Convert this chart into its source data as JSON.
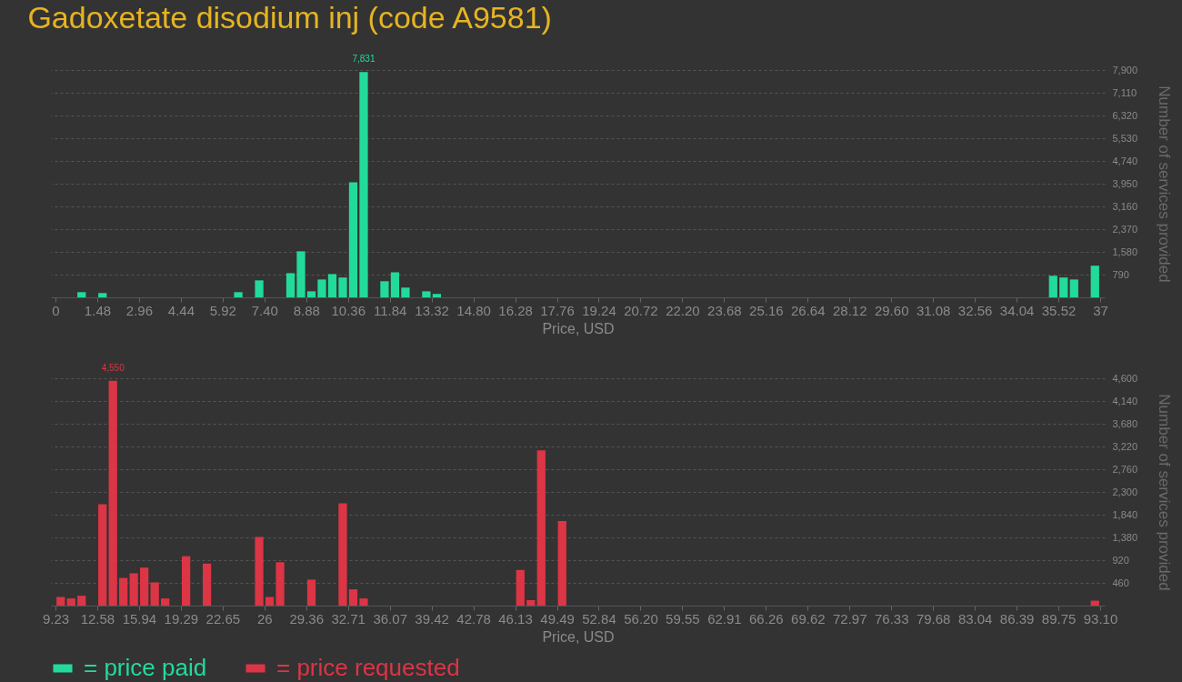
{
  "chart_data": [
    {
      "type": "histogram",
      "title": "Gadoxetate disodium inj (code A9581)",
      "xlabel": "Price, USD",
      "ylabel": "Number of services provided",
      "bins": [
        0,
        0.37,
        0.74,
        1.11,
        1.48,
        1.85,
        2.22,
        2.59,
        2.96,
        3.33,
        3.7,
        4.07,
        4.44,
        4.81,
        5.18,
        5.55,
        5.92,
        6.29,
        6.66,
        7.03,
        7.4,
        7.77,
        8.14,
        8.51,
        8.88,
        9.25,
        9.62,
        9.99,
        10.36,
        10.73,
        11.1,
        11.47,
        11.84,
        12.21,
        12.58,
        12.95,
        13.32,
        13.69,
        14.06,
        14.43,
        14.8,
        15.17,
        15.54,
        15.91,
        16.28,
        16.65,
        17.02,
        17.39,
        17.76,
        18.13,
        18.5,
        18.87,
        19.24,
        19.61,
        19.98,
        20.35,
        20.72,
        21.09,
        21.46,
        21.83,
        22.2,
        22.57,
        22.94,
        23.31,
        23.68,
        24.05,
        24.42,
        24.79,
        25.16,
        25.53,
        25.9,
        26.27,
        26.64,
        27.01,
        27.38,
        27.75,
        28.12,
        28.49,
        28.86,
        29.23,
        29.6,
        29.97,
        30.34,
        30.71,
        31.08,
        31.45,
        31.82,
        32.19,
        32.56,
        32.93,
        33.3,
        33.67,
        34.04,
        34.41,
        34.78,
        35.15,
        35.52,
        35.89,
        36.26,
        36.63,
        37
      ],
      "series": [
        {
          "name": "= price paid",
          "color": "#22db9a",
          "values": [
            0,
            0,
            180,
            0,
            150,
            0,
            0,
            0,
            0,
            0,
            0,
            0,
            0,
            0,
            0,
            0,
            0,
            180,
            0,
            590,
            0,
            0,
            840,
            1600,
            210,
            620,
            810,
            690,
            4000,
            7831,
            0,
            560,
            870,
            340,
            0,
            210,
            120,
            0,
            0,
            0,
            0,
            0,
            0,
            0,
            0,
            0,
            0,
            0,
            0,
            0,
            0,
            0,
            0,
            0,
            0,
            0,
            0,
            0,
            0,
            0,
            0,
            0,
            0,
            0,
            0,
            0,
            0,
            0,
            0,
            0,
            0,
            0,
            0,
            0,
            0,
            0,
            0,
            0,
            0,
            0,
            0,
            0,
            0,
            0,
            0,
            0,
            0,
            0,
            0,
            0,
            0,
            0,
            0,
            0,
            0,
            750,
            690,
            620,
            0,
            1100
          ],
          "value_labels": [
            null,
            null,
            null,
            null,
            null,
            null,
            null,
            null,
            null,
            null,
            null,
            null,
            null,
            null,
            null,
            null,
            null,
            null,
            null,
            null,
            null,
            null,
            null,
            null,
            null,
            null,
            null,
            null,
            null,
            "7,831",
            null,
            null,
            null,
            null,
            null,
            null,
            null,
            null,
            null,
            null,
            null,
            null,
            null,
            null,
            null,
            null,
            null,
            null,
            null,
            null,
            null,
            null,
            null,
            null,
            null,
            null,
            null,
            null,
            null,
            null,
            null,
            null,
            null,
            null,
            null,
            null,
            null,
            null,
            null,
            null,
            null,
            null,
            null,
            null,
            null,
            null,
            null,
            null,
            null,
            null,
            null,
            null,
            null,
            null,
            null,
            null,
            null,
            null,
            null,
            null,
            null,
            null,
            null,
            null,
            null,
            null,
            null,
            null,
            null,
            null
          ]
        }
      ],
      "xlim": [
        0,
        37
      ],
      "xticks": [
        0,
        1.48,
        2.96,
        4.44,
        5.92,
        {
          "value": 7.4,
          "label": "7.40"
        },
        8.88,
        10.36,
        11.84,
        13.32,
        {
          "value": 14.8,
          "label": "14.80"
        },
        16.28,
        17.76,
        19.24,
        20.72,
        {
          "value": 22.2,
          "label": "22.20"
        },
        23.68,
        25.16,
        26.64,
        28.12,
        {
          "value": 29.6,
          "label": "29.60"
        },
        31.08,
        32.56,
        34.04,
        35.52,
        37
      ],
      "ylim": [
        0,
        7900
      ],
      "yticks": [
        790,
        {
          "value": 1580,
          "label": "1,580"
        },
        {
          "value": 2370,
          "label": "2,370"
        },
        {
          "value": 3160,
          "label": "3,160"
        },
        {
          "value": 3950,
          "label": "3,950"
        },
        {
          "value": 4740,
          "label": "4,740"
        },
        {
          "value": 5530,
          "label": "5,530"
        },
        {
          "value": 6320,
          "label": "6,320"
        },
        {
          "value": 7110,
          "label": "7,110"
        },
        {
          "value": 7900,
          "label": "7,900"
        }
      ],
      "grid": "y",
      "legend": "bottom"
    },
    {
      "type": "histogram",
      "xlabel": "Price, USD",
      "ylabel": "Number of services provided",
      "bins": [
        9.23,
        10.0687,
        10.9074,
        11.7461,
        12.5848,
        13.4235,
        14.2622,
        15.1009,
        15.9396,
        16.7783,
        17.617,
        18.4557,
        19.2944,
        20.1331,
        20.9718,
        21.8105,
        22.6492,
        23.4879,
        24.3266,
        25.1653,
        26.004,
        26.8427,
        27.6814,
        28.5201,
        29.3588,
        30.1975,
        31.0362,
        31.8749,
        32.7136,
        33.5523,
        34.391,
        35.2297,
        36.0684,
        36.9071,
        37.7458,
        38.5845,
        39.4232,
        40.2619,
        41.1006,
        41.9393,
        42.778,
        43.6167,
        44.4554,
        45.2941,
        46.1328,
        46.9715,
        47.8102,
        48.6489,
        49.4876,
        50.3263,
        51.165,
        52.0037,
        52.8424,
        53.6811,
        54.5198,
        55.3585,
        56.1972,
        57.0359,
        57.8746,
        58.7133,
        59.552,
        60.3907,
        61.2294,
        62.0681,
        62.9068,
        63.7455,
        64.5842,
        65.4229,
        66.2616,
        67.1003,
        67.939,
        68.7777,
        69.6164,
        70.4551,
        71.2938,
        72.1325,
        72.9712,
        73.8099,
        74.6486,
        75.4873,
        76.326,
        77.1647,
        78.0034,
        78.8421,
        79.6808,
        80.5195,
        81.3582,
        82.1969,
        83.0356,
        83.8743,
        84.713,
        85.5517,
        86.3904,
        87.2291,
        88.0678,
        88.9065,
        89.7452,
        90.5839,
        91.4226,
        92.2613,
        93.1
      ],
      "series": [
        {
          "name": "= price requested",
          "color": "#dc3545",
          "values": [
            175,
            145,
            200,
            0,
            2050,
            4550,
            560,
            655,
            770,
            470,
            145,
            0,
            1000,
            0,
            850,
            0,
            0,
            0,
            0,
            1390,
            175,
            880,
            0,
            0,
            525,
            0,
            0,
            2070,
            330,
            145,
            0,
            0,
            0,
            0,
            0,
            0,
            0,
            0,
            0,
            0,
            0,
            0,
            0,
            0,
            720,
            110,
            3140,
            0,
            1710,
            0,
            0,
            0,
            0,
            0,
            0,
            0,
            0,
            0,
            0,
            0,
            0,
            0,
            0,
            0,
            0,
            0,
            0,
            0,
            0,
            0,
            0,
            0,
            0,
            0,
            0,
            0,
            0,
            0,
            0,
            0,
            0,
            0,
            0,
            0,
            0,
            0,
            0,
            0,
            0,
            0,
            0,
            0,
            0,
            0,
            0,
            0,
            0,
            0,
            0,
            100
          ],
          "value_labels": [
            null,
            null,
            null,
            null,
            null,
            "4,550",
            null,
            null,
            null,
            null,
            null,
            null,
            null,
            null,
            null,
            null,
            null,
            null,
            null,
            null,
            null,
            null,
            null,
            null,
            null,
            null,
            null,
            null,
            null,
            null,
            null,
            null,
            null,
            null,
            null,
            null,
            null,
            null,
            null,
            null,
            null,
            null,
            null,
            null,
            null,
            null,
            null,
            null,
            null,
            null,
            null,
            null,
            null,
            null,
            null,
            null,
            null,
            null,
            null,
            null,
            null,
            null,
            null,
            null,
            null,
            null,
            null,
            null,
            null,
            null,
            null,
            null,
            null,
            null,
            null,
            null,
            null,
            null,
            null,
            null,
            null,
            null,
            null,
            null,
            null,
            null,
            null,
            null,
            null,
            null,
            null,
            null,
            null,
            null,
            null,
            null,
            null,
            null,
            null,
            null
          ]
        }
      ],
      "xlim": [
        9.23,
        93.1
      ],
      "xticks": [
        9.23,
        12.58,
        15.94,
        19.29,
        22.65,
        26,
        29.36,
        32.71,
        36.07,
        39.42,
        42.78,
        46.13,
        49.49,
        52.84,
        {
          "value": 56.2,
          "label": "56.20"
        },
        59.55,
        62.91,
        66.26,
        69.62,
        72.97,
        76.33,
        79.68,
        83.04,
        86.39,
        89.75,
        {
          "value": 93.1,
          "label": "93.10"
        }
      ],
      "ylim": [
        0,
        4600
      ],
      "yticks": [
        460,
        920,
        {
          "value": 1380,
          "label": "1,380"
        },
        {
          "value": 1840,
          "label": "1,840"
        },
        {
          "value": 2300,
          "label": "2,300"
        },
        {
          "value": 2760,
          "label": "2,760"
        },
        {
          "value": 3220,
          "label": "3,220"
        },
        {
          "value": 3680,
          "label": "3,680"
        },
        {
          "value": 4140,
          "label": "4,140"
        },
        {
          "value": 4600,
          "label": "4,600"
        }
      ],
      "grid": "y",
      "legend": "bottom"
    }
  ]
}
